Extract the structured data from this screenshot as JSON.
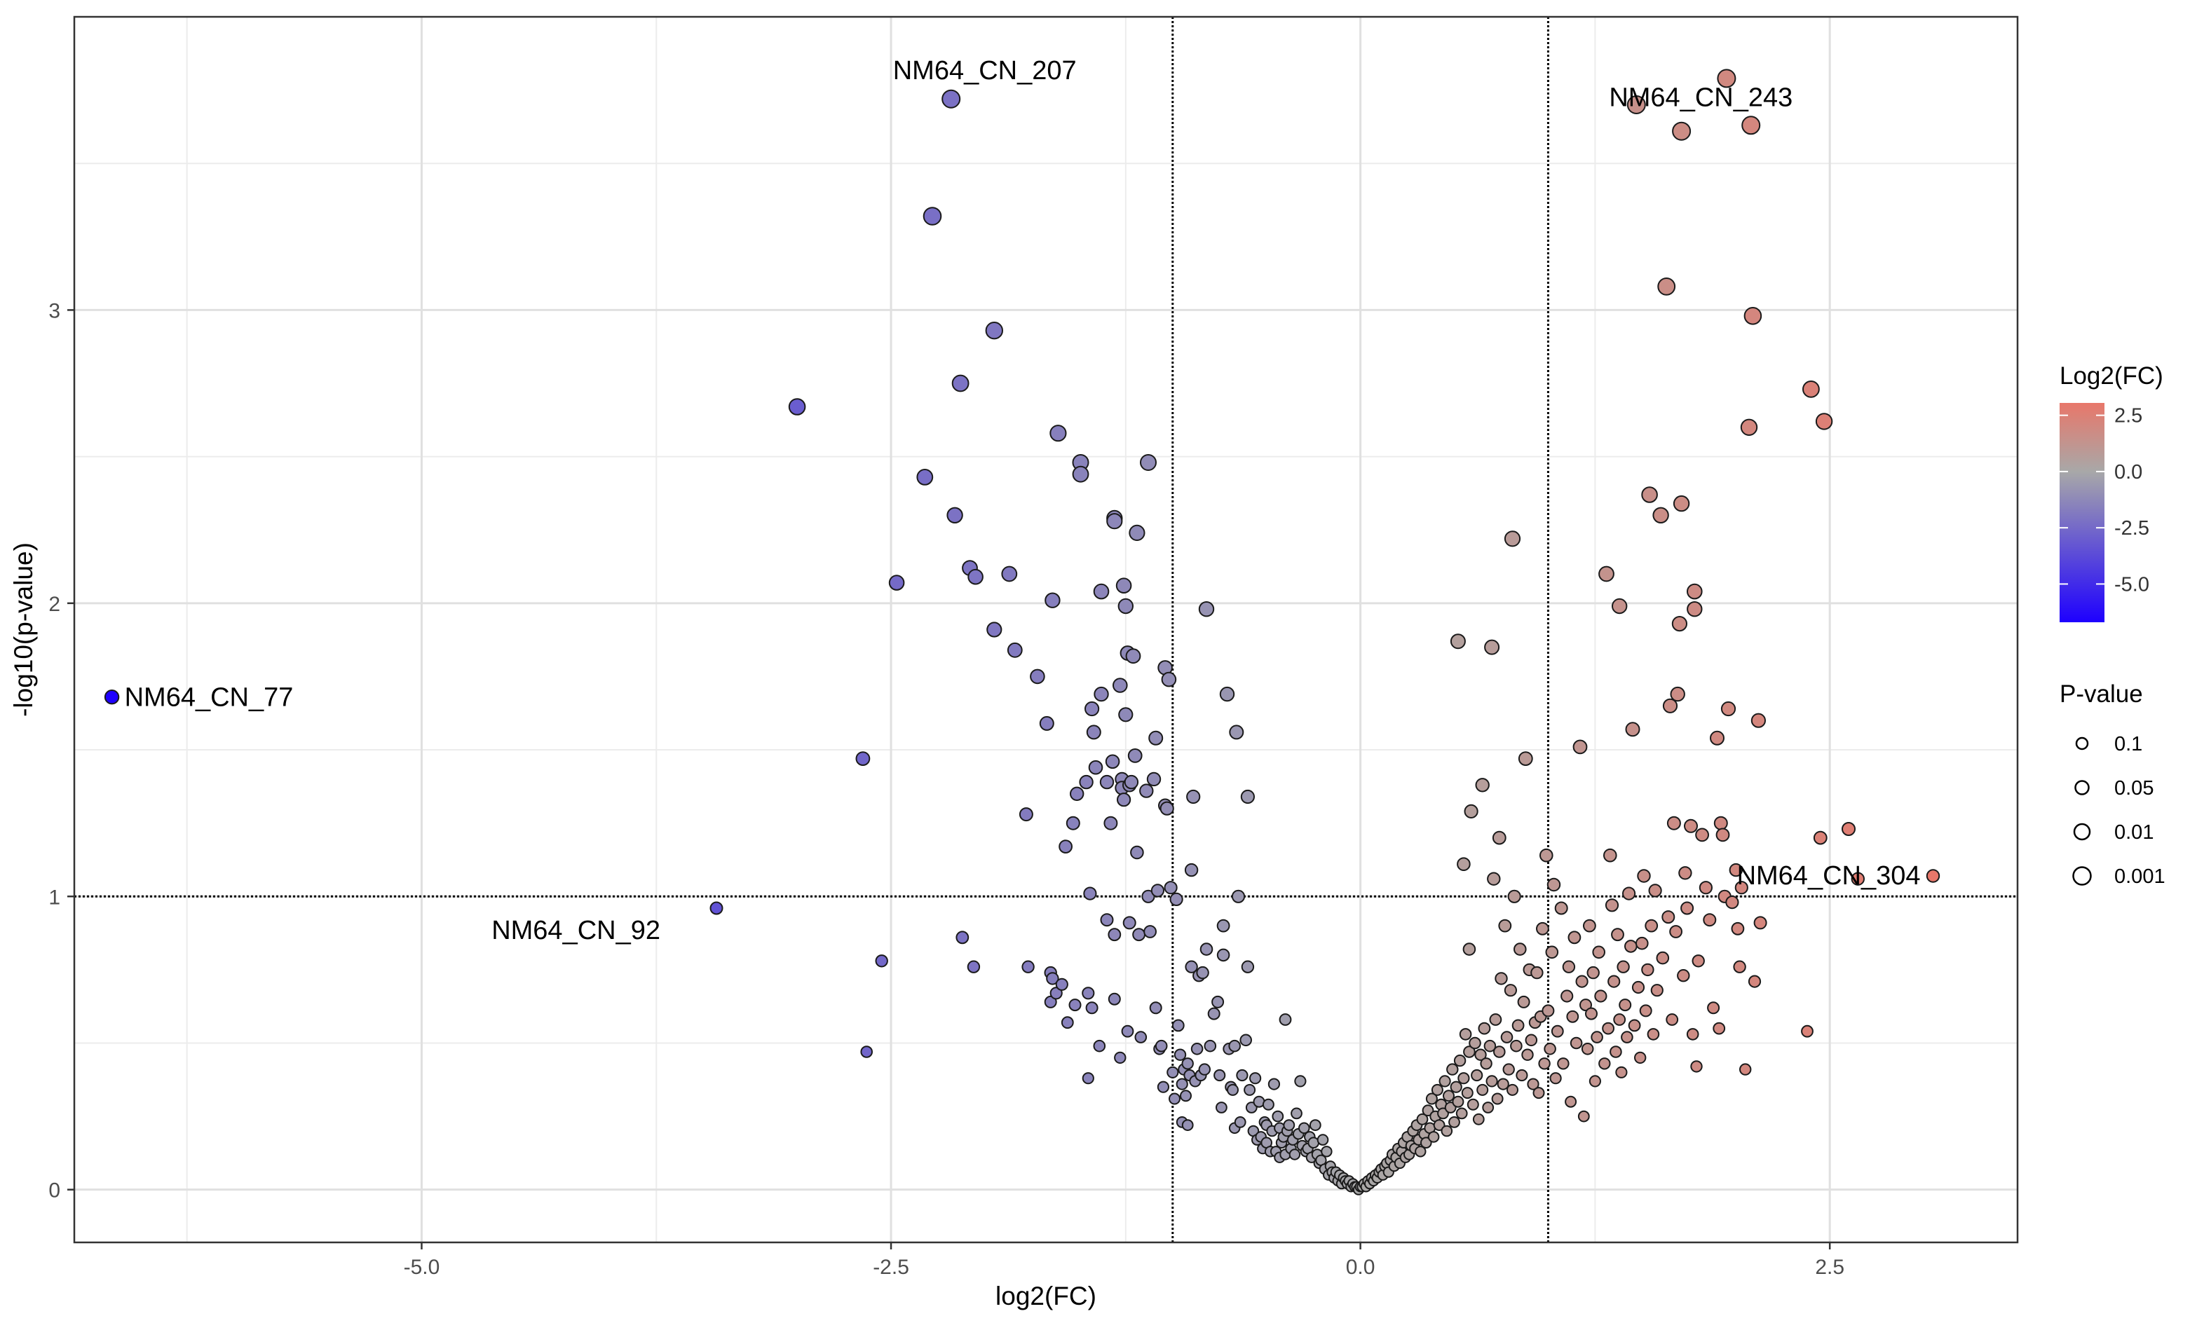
{
  "chart_data": {
    "type": "scatter",
    "title": "",
    "xlabel": "log2(FC)",
    "ylabel": "-log10(p-value)",
    "xlim": [
      -6.85,
      3.5
    ],
    "ylim": [
      -0.18,
      4.0
    ],
    "x_ticks": [
      -5.0,
      -2.5,
      0.0,
      2.5
    ],
    "x_tick_labels": [
      "-5.0",
      "-2.5",
      "0.0",
      "2.5"
    ],
    "y_ticks": [
      0,
      1,
      2,
      3
    ],
    "y_tick_labels": [
      "0",
      "1",
      "2",
      "3"
    ],
    "grid": true,
    "threshold_lines": {
      "fc": [
        -1.0,
        1.0
      ],
      "p": 1.0
    },
    "color_scale": {
      "low": "#1e00ff",
      "mid": "#a8a8a8",
      "high": "#e8776a",
      "domain": [
        -6.7,
        3.05
      ]
    },
    "legend_position": "right",
    "legend": {
      "color_title": "Log2(FC)",
      "color_values": [
        2.5,
        0.0,
        -2.5,
        -5.0
      ],
      "color_labels": [
        "2.5",
        "0.0",
        "-2.5",
        "-5.0"
      ],
      "size_title": "P-value",
      "size_labels": [
        "0.1",
        "0.05",
        "0.01",
        "0.001"
      ],
      "size_values": [
        0.1,
        0.05,
        0.01,
        0.001
      ]
    },
    "labels": [
      {
        "text": "NM64_CN_207",
        "x": -2.18,
        "y": 3.72
      },
      {
        "text": "NM64_CN_243",
        "x": 1.47,
        "y": 3.7
      },
      {
        "text": "NM64_CN_77",
        "x": -6.65,
        "y": 1.68
      },
      {
        "text": "NM64_CN_92",
        "x": -3.43,
        "y": 0.96
      },
      {
        "text": "NM64_CN_304",
        "x": 3.05,
        "y": 1.07
      }
    ],
    "points": [
      [
        -6.65,
        1.68
      ],
      [
        -3.43,
        0.96
      ],
      [
        -3.0,
        2.67
      ],
      [
        -2.65,
        1.47
      ],
      [
        -2.63,
        0.47
      ],
      [
        -2.55,
        0.78
      ],
      [
        -2.47,
        2.07
      ],
      [
        -2.32,
        2.43
      ],
      [
        -2.28,
        3.32
      ],
      [
        -2.18,
        3.72
      ],
      [
        -2.16,
        2.3
      ],
      [
        -2.13,
        2.75
      ],
      [
        -2.12,
        0.86
      ],
      [
        -2.08,
        2.12
      ],
      [
        -2.06,
        0.76
      ],
      [
        -2.05,
        2.09
      ],
      [
        -1.95,
        1.91
      ],
      [
        -1.95,
        2.93
      ],
      [
        -1.87,
        2.1
      ],
      [
        -1.84,
        1.84
      ],
      [
        -1.78,
        1.28
      ],
      [
        -1.77,
        0.76
      ],
      [
        -1.72,
        1.75
      ],
      [
        -1.67,
        1.59
      ],
      [
        -1.65,
        0.74
      ],
      [
        -1.65,
        0.64
      ],
      [
        -1.64,
        2.01
      ],
      [
        -1.64,
        0.72
      ],
      [
        -1.62,
        0.67
      ],
      [
        -1.61,
        2.58
      ],
      [
        -1.59,
        0.7
      ],
      [
        -1.57,
        1.17
      ],
      [
        -1.56,
        0.57
      ],
      [
        -1.53,
        1.25
      ],
      [
        -1.52,
        0.63
      ],
      [
        -1.51,
        1.35
      ],
      [
        -1.49,
        2.48
      ],
      [
        -1.49,
        2.44
      ],
      [
        -1.46,
        1.39
      ],
      [
        -1.45,
        0.67
      ],
      [
        -1.45,
        0.38
      ],
      [
        -1.44,
        1.01
      ],
      [
        -1.43,
        1.64
      ],
      [
        -1.43,
        0.62
      ],
      [
        -1.42,
        1.56
      ],
      [
        -1.41,
        1.44
      ],
      [
        -1.39,
        0.49
      ],
      [
        -1.38,
        1.69
      ],
      [
        -1.38,
        2.04
      ],
      [
        -1.35,
        1.39
      ],
      [
        -1.35,
        0.92
      ],
      [
        -1.33,
        1.25
      ],
      [
        -1.32,
        1.46
      ],
      [
        -1.31,
        0.65
      ],
      [
        -1.31,
        0.87
      ],
      [
        -1.31,
        2.29
      ],
      [
        -1.31,
        2.28
      ],
      [
        -1.28,
        1.72
      ],
      [
        -1.28,
        0.45
      ],
      [
        -1.27,
        1.4
      ],
      [
        -1.27,
        1.37
      ],
      [
        -1.26,
        2.06
      ],
      [
        -1.26,
        1.33
      ],
      [
        -1.25,
        1.62
      ],
      [
        -1.25,
        1.99
      ],
      [
        -1.24,
        1.83
      ],
      [
        -1.24,
        0.54
      ],
      [
        -1.23,
        0.91
      ],
      [
        -1.23,
        1.38
      ],
      [
        -1.22,
        1.39
      ],
      [
        -1.21,
        1.82
      ],
      [
        -1.2,
        1.48
      ],
      [
        -1.19,
        2.24
      ],
      [
        -1.19,
        1.15
      ],
      [
        -1.18,
        0.87
      ],
      [
        -1.17,
        0.52
      ],
      [
        -1.14,
        1.36
      ],
      [
        -1.13,
        2.48
      ],
      [
        -1.13,
        1.0
      ],
      [
        -1.12,
        0.88
      ],
      [
        -1.1,
        1.4
      ],
      [
        -1.09,
        1.54
      ],
      [
        -1.09,
        0.62
      ],
      [
        -1.08,
        1.02
      ],
      [
        -1.07,
        0.48
      ],
      [
        -1.06,
        0.49
      ],
      [
        -1.05,
        0.35
      ],
      [
        -1.04,
        1.78
      ],
      [
        -1.04,
        1.31
      ],
      [
        -1.03,
        1.3
      ],
      [
        -1.02,
        1.74
      ],
      [
        -1.01,
        1.03
      ],
      [
        -1.0,
        0.4
      ],
      [
        -0.99,
        0.31
      ],
      [
        -0.98,
        0.99
      ],
      [
        -0.97,
        0.56
      ],
      [
        -0.96,
        0.46
      ],
      [
        -0.95,
        0.36
      ],
      [
        -0.95,
        0.23
      ],
      [
        -0.94,
        0.41
      ],
      [
        -0.93,
        0.32
      ],
      [
        -0.92,
        0.43
      ],
      [
        -0.92,
        0.22
      ],
      [
        -0.91,
        0.39
      ],
      [
        -0.9,
        0.76
      ],
      [
        -0.9,
        1.09
      ],
      [
        -0.89,
        1.34
      ],
      [
        -0.88,
        0.37
      ],
      [
        -0.87,
        0.48
      ],
      [
        -0.86,
        0.73
      ],
      [
        -0.85,
        0.39
      ],
      [
        -0.84,
        0.74
      ],
      [
        -0.83,
        0.41
      ],
      [
        -0.82,
        1.98
      ],
      [
        -0.82,
        0.82
      ],
      [
        -0.8,
        0.49
      ],
      [
        -0.78,
        0.6
      ],
      [
        -0.76,
        0.64
      ],
      [
        -0.75,
        0.39
      ],
      [
        -0.74,
        0.28
      ],
      [
        -0.73,
        0.8
      ],
      [
        -0.73,
        0.9
      ],
      [
        -0.71,
        1.69
      ],
      [
        -0.7,
        0.48
      ],
      [
        -0.69,
        0.35
      ],
      [
        -0.68,
        0.34
      ],
      [
        -0.67,
        0.49
      ],
      [
        -0.67,
        0.21
      ],
      [
        -0.66,
        1.56
      ],
      [
        -0.65,
        1.0
      ],
      [
        -0.64,
        0.23
      ],
      [
        -0.63,
        0.39
      ],
      [
        -0.61,
        0.51
      ],
      [
        -0.6,
        1.34
      ],
      [
        -0.6,
        0.76
      ],
      [
        -0.59,
        0.34
      ],
      [
        -0.58,
        0.28
      ],
      [
        -0.57,
        0.2
      ],
      [
        -0.56,
        0.38
      ],
      [
        -0.55,
        0.17
      ],
      [
        -0.54,
        0.3
      ],
      [
        -0.53,
        0.18
      ],
      [
        -0.52,
        0.14
      ],
      [
        -0.51,
        0.23
      ],
      [
        -0.5,
        0.22
      ],
      [
        -0.5,
        0.16
      ],
      [
        -0.49,
        0.29
      ],
      [
        -0.48,
        0.13
      ],
      [
        -0.47,
        0.2
      ],
      [
        -0.46,
        0.36
      ],
      [
        -0.45,
        0.13
      ],
      [
        -0.44,
        0.25
      ],
      [
        -0.43,
        0.11
      ],
      [
        -0.43,
        0.21
      ],
      [
        -0.42,
        0.16
      ],
      [
        -0.41,
        0.18
      ],
      [
        -0.4,
        0.12
      ],
      [
        -0.4,
        0.58
      ],
      [
        -0.39,
        0.2
      ],
      [
        -0.38,
        0.22
      ],
      [
        -0.37,
        0.14
      ],
      [
        -0.36,
        0.17
      ],
      [
        -0.35,
        0.12
      ],
      [
        -0.34,
        0.26
      ],
      [
        -0.33,
        0.19
      ],
      [
        -0.32,
        0.37
      ],
      [
        -0.31,
        0.15
      ],
      [
        -0.3,
        0.21
      ],
      [
        -0.29,
        0.13
      ],
      [
        -0.28,
        0.14
      ],
      [
        -0.27,
        0.18
      ],
      [
        -0.26,
        0.11
      ],
      [
        -0.25,
        0.16
      ],
      [
        -0.24,
        0.22
      ],
      [
        -0.23,
        0.12
      ],
      [
        -0.22,
        0.09
      ],
      [
        -0.21,
        0.1
      ],
      [
        -0.2,
        0.17
      ],
      [
        -0.19,
        0.07
      ],
      [
        -0.18,
        0.13
      ],
      [
        -0.17,
        0.05
      ],
      [
        -0.16,
        0.08
      ],
      [
        -0.15,
        0.06
      ],
      [
        -0.14,
        0.04
      ],
      [
        -0.13,
        0.06
      ],
      [
        -0.12,
        0.03
      ],
      [
        -0.11,
        0.05
      ],
      [
        -0.1,
        0.02
      ],
      [
        -0.09,
        0.04
      ],
      [
        -0.08,
        0.03
      ],
      [
        -0.07,
        0.02
      ],
      [
        -0.06,
        0.03
      ],
      [
        -0.05,
        0.01
      ],
      [
        -0.04,
        0.02
      ],
      [
        -0.03,
        0.01
      ],
      [
        -0.02,
        0.01
      ],
      [
        -0.01,
        0.0
      ],
      [
        0.0,
        0.01
      ],
      [
        0.01,
        0.01
      ],
      [
        0.02,
        0.02
      ],
      [
        0.03,
        0.01
      ],
      [
        0.04,
        0.03
      ],
      [
        0.05,
        0.02
      ],
      [
        0.06,
        0.04
      ],
      [
        0.07,
        0.03
      ],
      [
        0.08,
        0.05
      ],
      [
        0.09,
        0.04
      ],
      [
        0.1,
        0.06
      ],
      [
        0.11,
        0.07
      ],
      [
        0.12,
        0.05
      ],
      [
        0.13,
        0.08
      ],
      [
        0.14,
        0.09
      ],
      [
        0.15,
        0.06
      ],
      [
        0.16,
        0.1
      ],
      [
        0.17,
        0.12
      ],
      [
        0.18,
        0.08
      ],
      [
        0.19,
        0.11
      ],
      [
        0.2,
        0.14
      ],
      [
        0.21,
        0.09
      ],
      [
        0.22,
        0.13
      ],
      [
        0.23,
        0.16
      ],
      [
        0.24,
        0.11
      ],
      [
        0.25,
        0.18
      ],
      [
        0.26,
        0.12
      ],
      [
        0.27,
        0.15
      ],
      [
        0.28,
        0.2
      ],
      [
        0.29,
        0.14
      ],
      [
        0.3,
        0.22
      ],
      [
        0.31,
        0.17
      ],
      [
        0.32,
        0.13
      ],
      [
        0.33,
        0.24
      ],
      [
        0.34,
        0.19
      ],
      [
        0.35,
        0.16
      ],
      [
        0.36,
        0.27
      ],
      [
        0.37,
        0.21
      ],
      [
        0.38,
        0.31
      ],
      [
        0.39,
        0.18
      ],
      [
        0.4,
        0.25
      ],
      [
        0.41,
        0.34
      ],
      [
        0.42,
        0.22
      ],
      [
        0.43,
        0.29
      ],
      [
        0.44,
        0.26
      ],
      [
        0.45,
        0.37
      ],
      [
        0.46,
        0.2
      ],
      [
        0.47,
        0.32
      ],
      [
        0.48,
        0.28
      ],
      [
        0.49,
        0.41
      ],
      [
        0.5,
        0.23
      ],
      [
        0.51,
        0.35
      ],
      [
        0.52,
        1.87
      ],
      [
        0.52,
        0.3
      ],
      [
        0.53,
        0.44
      ],
      [
        0.54,
        0.26
      ],
      [
        0.55,
        1.11
      ],
      [
        0.55,
        0.38
      ],
      [
        0.56,
        0.53
      ],
      [
        0.57,
        0.33
      ],
      [
        0.58,
        0.82
      ],
      [
        0.58,
        0.47
      ],
      [
        0.59,
        1.29
      ],
      [
        0.6,
        0.29
      ],
      [
        0.61,
        0.5
      ],
      [
        0.62,
        0.39
      ],
      [
        0.63,
        0.24
      ],
      [
        0.64,
        0.46
      ],
      [
        0.65,
        1.38
      ],
      [
        0.65,
        0.34
      ],
      [
        0.66,
        0.55
      ],
      [
        0.67,
        0.43
      ],
      [
        0.68,
        0.28
      ],
      [
        0.69,
        0.49
      ],
      [
        0.7,
        1.85
      ],
      [
        0.7,
        0.37
      ],
      [
        0.71,
        1.06
      ],
      [
        0.72,
        0.58
      ],
      [
        0.73,
        0.31
      ],
      [
        0.74,
        1.2
      ],
      [
        0.74,
        0.47
      ],
      [
        0.75,
        0.72
      ],
      [
        0.76,
        0.36
      ],
      [
        0.77,
        0.9
      ],
      [
        0.78,
        0.52
      ],
      [
        0.79,
        0.41
      ],
      [
        0.8,
        0.68
      ],
      [
        0.81,
        2.22
      ],
      [
        0.81,
        0.34
      ],
      [
        0.82,
        1.0
      ],
      [
        0.83,
        0.49
      ],
      [
        0.84,
        0.56
      ],
      [
        0.85,
        0.82
      ],
      [
        0.86,
        0.39
      ],
      [
        0.87,
        0.64
      ],
      [
        0.88,
        1.47
      ],
      [
        0.89,
        0.46
      ],
      [
        0.9,
        0.75
      ],
      [
        0.91,
        0.51
      ],
      [
        0.92,
        0.36
      ],
      [
        0.93,
        0.57
      ],
      [
        0.94,
        0.74
      ],
      [
        0.95,
        0.33
      ],
      [
        0.96,
        0.59
      ],
      [
        0.97,
        0.89
      ],
      [
        0.98,
        0.43
      ],
      [
        0.99,
        1.14
      ],
      [
        1.0,
        0.61
      ],
      [
        1.01,
        0.48
      ],
      [
        1.02,
        0.81
      ],
      [
        1.03,
        1.04
      ],
      [
        1.04,
        0.38
      ],
      [
        1.05,
        0.54
      ],
      [
        1.07,
        0.96
      ],
      [
        1.08,
        0.43
      ],
      [
        1.1,
        0.66
      ],
      [
        1.11,
        0.76
      ],
      [
        1.12,
        0.3
      ],
      [
        1.13,
        0.59
      ],
      [
        1.14,
        0.86
      ],
      [
        1.15,
        0.5
      ],
      [
        1.17,
        1.51
      ],
      [
        1.18,
        0.71
      ],
      [
        1.19,
        0.25
      ],
      [
        1.2,
        0.63
      ],
      [
        1.21,
        0.48
      ],
      [
        1.22,
        0.9
      ],
      [
        1.23,
        0.6
      ],
      [
        1.24,
        0.74
      ],
      [
        1.25,
        0.37
      ],
      [
        1.26,
        0.52
      ],
      [
        1.27,
        0.81
      ],
      [
        1.28,
        0.66
      ],
      [
        1.3,
        0.43
      ],
      [
        1.31,
        2.1
      ],
      [
        1.32,
        0.55
      ],
      [
        1.33,
        1.14
      ],
      [
        1.34,
        0.97
      ],
      [
        1.35,
        0.71
      ],
      [
        1.36,
        0.47
      ],
      [
        1.37,
        0.87
      ],
      [
        1.38,
        1.99
      ],
      [
        1.38,
        0.58
      ],
      [
        1.39,
        0.4
      ],
      [
        1.4,
        0.76
      ],
      [
        1.41,
        0.63
      ],
      [
        1.42,
        0.52
      ],
      [
        1.43,
        1.01
      ],
      [
        1.44,
        0.83
      ],
      [
        1.45,
        1.57
      ],
      [
        1.46,
        0.56
      ],
      [
        1.47,
        3.7
      ],
      [
        1.48,
        0.69
      ],
      [
        1.49,
        0.45
      ],
      [
        1.5,
        0.84
      ],
      [
        1.51,
        1.07
      ],
      [
        1.52,
        0.61
      ],
      [
        1.53,
        0.75
      ],
      [
        1.54,
        2.37
      ],
      [
        1.55,
        0.9
      ],
      [
        1.56,
        0.53
      ],
      [
        1.57,
        1.02
      ],
      [
        1.58,
        0.68
      ],
      [
        1.6,
        2.3
      ],
      [
        1.61,
        0.79
      ],
      [
        1.63,
        3.08
      ],
      [
        1.64,
        0.93
      ],
      [
        1.65,
        1.65
      ],
      [
        1.66,
        0.58
      ],
      [
        1.67,
        1.25
      ],
      [
        1.68,
        0.88
      ],
      [
        1.69,
        1.69
      ],
      [
        1.7,
        1.93
      ],
      [
        1.71,
        3.61
      ],
      [
        1.71,
        2.34
      ],
      [
        1.72,
        0.73
      ],
      [
        1.73,
        1.08
      ],
      [
        1.74,
        0.96
      ],
      [
        1.76,
        1.24
      ],
      [
        1.77,
        0.53
      ],
      [
        1.78,
        2.04
      ],
      [
        1.78,
        1.98
      ],
      [
        1.79,
        0.42
      ],
      [
        1.8,
        0.78
      ],
      [
        1.82,
        1.21
      ],
      [
        1.84,
        1.03
      ],
      [
        1.86,
        0.92
      ],
      [
        1.88,
        0.62
      ],
      [
        1.9,
        1.54
      ],
      [
        1.91,
        0.55
      ],
      [
        1.92,
        1.25
      ],
      [
        1.93,
        1.21
      ],
      [
        1.94,
        1.0
      ],
      [
        1.95,
        3.79
      ],
      [
        1.96,
        1.64
      ],
      [
        1.98,
        0.98
      ],
      [
        2.0,
        1.09
      ],
      [
        2.01,
        0.89
      ],
      [
        2.02,
        0.76
      ],
      [
        2.03,
        1.03
      ],
      [
        2.05,
        0.41
      ],
      [
        2.07,
        2.6
      ],
      [
        2.08,
        3.63
      ],
      [
        2.09,
        2.98
      ],
      [
        2.1,
        0.71
      ],
      [
        2.12,
        1.6
      ],
      [
        2.13,
        0.91
      ],
      [
        2.38,
        0.54
      ],
      [
        2.4,
        2.73
      ],
      [
        2.45,
        1.2
      ],
      [
        2.47,
        2.62
      ],
      [
        2.6,
        1.23
      ],
      [
        2.65,
        1.06
      ],
      [
        3.05,
        1.07
      ]
    ]
  }
}
